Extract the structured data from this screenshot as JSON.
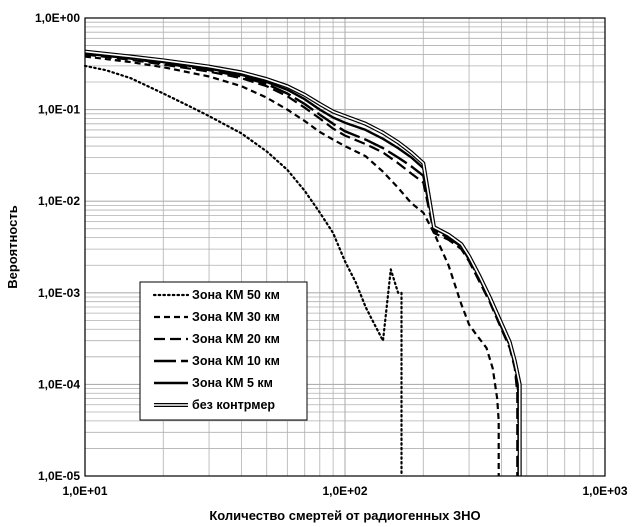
{
  "chart_data": {
    "type": "line",
    "title": "",
    "xlabel": "Количество смертей от радиогенных ЗНО",
    "ylabel": "Вероятность",
    "xscale": "log",
    "yscale": "log",
    "xlim": [
      10,
      1000
    ],
    "ylim": [
      1e-05,
      1
    ],
    "x_tick_labels": [
      "1,0E+01",
      "1,0E+02",
      "1,0E+03"
    ],
    "y_tick_labels": [
      "1,0E+00",
      "1,0E-01",
      "1,0E-02",
      "1,0E-03",
      "1,0E-04",
      "1,0E-05"
    ],
    "grid": true,
    "legend_position": "bottom-left",
    "series": [
      {
        "name": "Зона КМ 50 км",
        "style": "dotted",
        "x": [
          10,
          12,
          15,
          20,
          25,
          30,
          40,
          50,
          60,
          70,
          80,
          90,
          100,
          110,
          120,
          130,
          140,
          150,
          160,
          165,
          165
        ],
        "y": [
          0.3,
          0.27,
          0.22,
          0.15,
          0.11,
          0.085,
          0.055,
          0.035,
          0.022,
          0.013,
          0.0075,
          0.0045,
          0.0022,
          0.0013,
          0.0007,
          0.00045,
          0.0003,
          0.0018,
          0.001,
          0.001,
          1e-05
        ]
      },
      {
        "name": "Зона КМ 30 км",
        "style": "short-dash",
        "x": [
          10,
          15,
          20,
          30,
          40,
          50,
          60,
          70,
          80,
          90,
          100,
          120,
          140,
          160,
          180,
          200,
          220,
          250,
          280,
          300,
          320,
          350,
          370,
          385,
          390,
          390
        ],
        "y": [
          0.38,
          0.33,
          0.29,
          0.23,
          0.18,
          0.135,
          0.1,
          0.075,
          0.057,
          0.047,
          0.04,
          0.031,
          0.021,
          0.014,
          0.0095,
          0.0075,
          0.0045,
          0.002,
          0.00075,
          0.00045,
          0.00035,
          0.00025,
          0.00015,
          7e-05,
          4e-05,
          1e-05
        ]
      },
      {
        "name": "Зона КМ 20 км",
        "style": "dash",
        "x": [
          10,
          15,
          20,
          30,
          40,
          50,
          60,
          70,
          80,
          90,
          100,
          120,
          140,
          160,
          180,
          200,
          220,
          250,
          280,
          300,
          330,
          360,
          400,
          430,
          450,
          460,
          460
        ],
        "y": [
          0.4,
          0.35,
          0.31,
          0.26,
          0.22,
          0.18,
          0.14,
          0.105,
          0.08,
          0.062,
          0.052,
          0.042,
          0.034,
          0.026,
          0.02,
          0.016,
          0.0045,
          0.0038,
          0.003,
          0.0022,
          0.0013,
          0.0008,
          0.0004,
          0.00025,
          0.00015,
          8e-05,
          1e-05
        ]
      },
      {
        "name": "Зона КМ 10 км",
        "style": "long-dash",
        "x": [
          10,
          15,
          20,
          30,
          40,
          50,
          60,
          70,
          80,
          90,
          100,
          120,
          140,
          160,
          180,
          200,
          220,
          250,
          280,
          300,
          330,
          360,
          400,
          430,
          450,
          465,
          465
        ],
        "y": [
          0.41,
          0.36,
          0.32,
          0.27,
          0.23,
          0.19,
          0.15,
          0.115,
          0.088,
          0.07,
          0.058,
          0.047,
          0.038,
          0.03,
          0.024,
          0.019,
          0.0048,
          0.004,
          0.0032,
          0.0023,
          0.0014,
          0.00085,
          0.00042,
          0.00027,
          0.00016,
          8e-05,
          1e-05
        ]
      },
      {
        "name": "Зона КМ 5 км",
        "style": "solid",
        "x": [
          10,
          15,
          20,
          30,
          40,
          50,
          60,
          70,
          80,
          90,
          100,
          120,
          140,
          160,
          180,
          200,
          220,
          250,
          280,
          300,
          330,
          360,
          400,
          430,
          450,
          470,
          470
        ],
        "y": [
          0.42,
          0.37,
          0.33,
          0.28,
          0.24,
          0.2,
          0.165,
          0.13,
          0.1,
          0.082,
          0.072,
          0.06,
          0.048,
          0.038,
          0.03,
          0.023,
          0.005,
          0.0042,
          0.0033,
          0.0024,
          0.0015,
          0.0009,
          0.00045,
          0.00028,
          0.00017,
          9e-05,
          1e-05
        ]
      },
      {
        "name": "без контрмер",
        "style": "double",
        "x": [
          10,
          15,
          20,
          30,
          40,
          50,
          60,
          70,
          80,
          90,
          100,
          120,
          140,
          160,
          180,
          200,
          220,
          250,
          280,
          300,
          330,
          360,
          400,
          430,
          450,
          470,
          470
        ],
        "y": [
          0.43,
          0.38,
          0.345,
          0.295,
          0.255,
          0.215,
          0.18,
          0.145,
          0.115,
          0.095,
          0.085,
          0.07,
          0.056,
          0.044,
          0.034,
          0.026,
          0.0052,
          0.0043,
          0.0034,
          0.0025,
          0.0015,
          0.0009,
          0.00046,
          0.00029,
          0.00018,
          0.0001,
          1e-05
        ]
      }
    ]
  }
}
